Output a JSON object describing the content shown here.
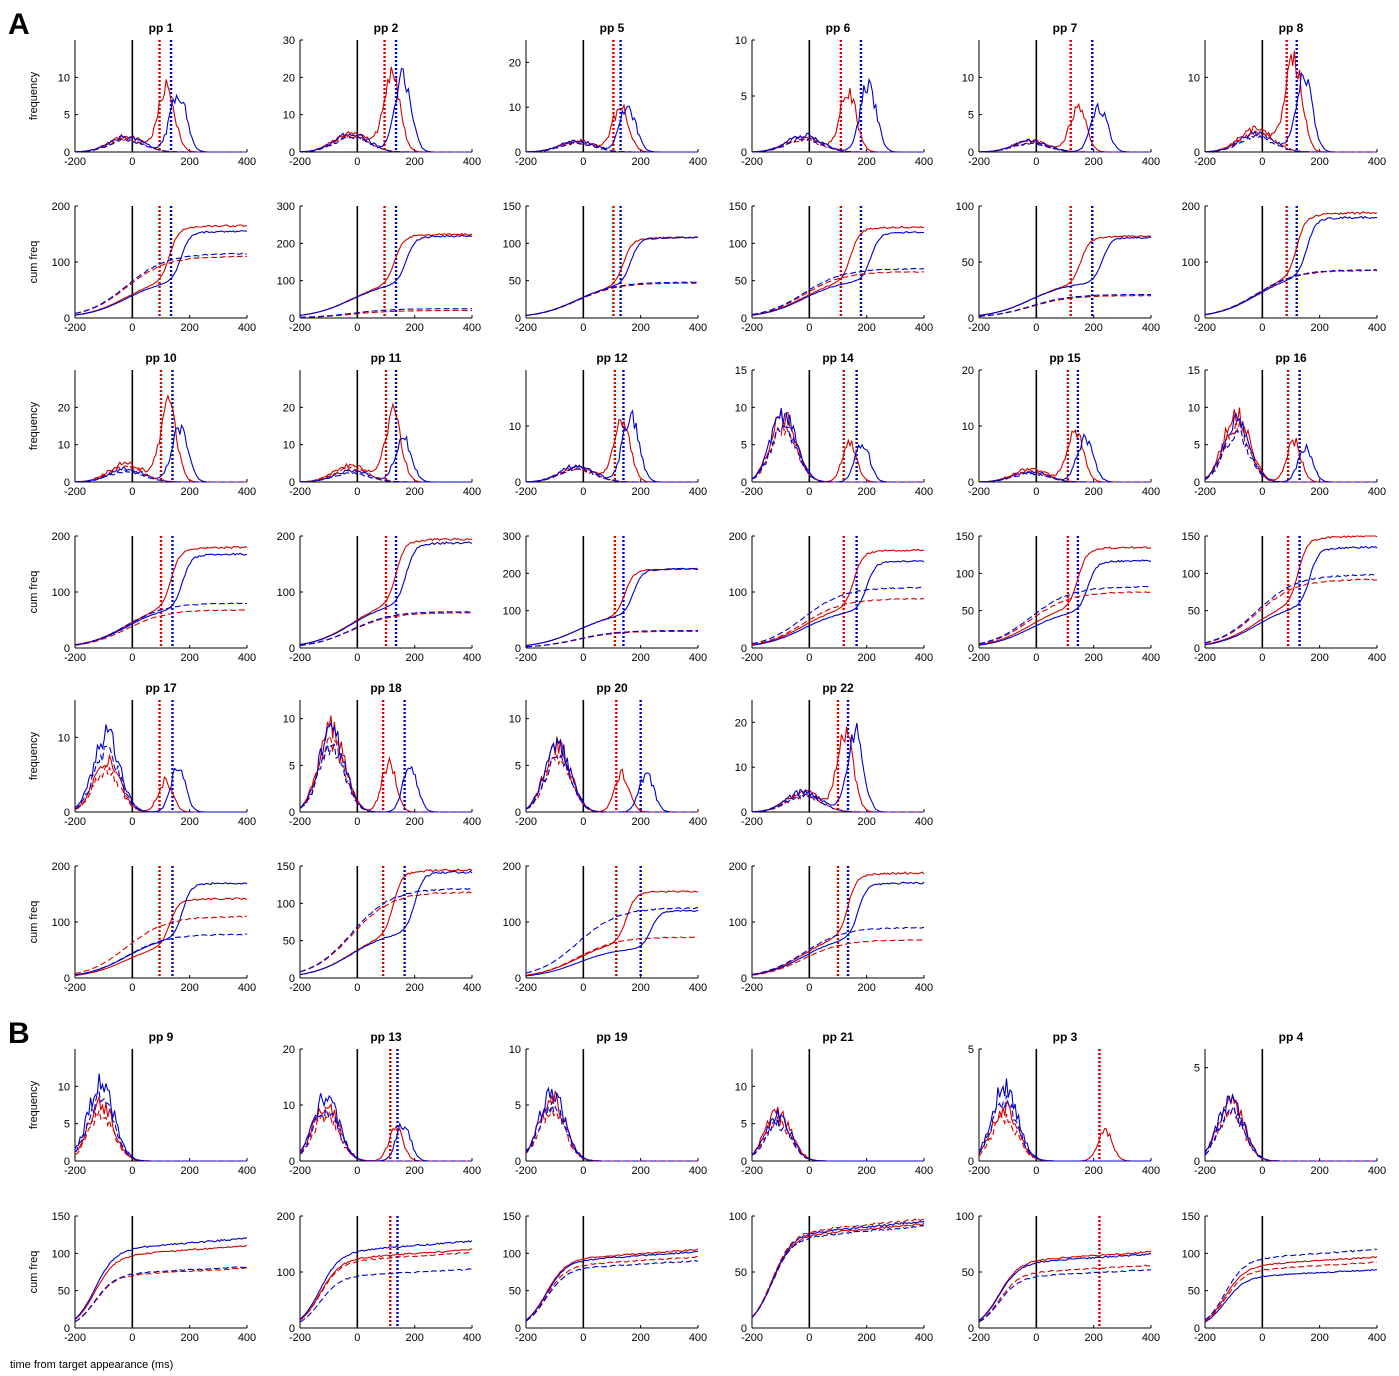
{
  "panel_labels": [
    "A",
    "B"
  ],
  "x_axis_label": "time from target appearance (ms)",
  "y_labels": {
    "frequency": "frequency",
    "cum": "cum freq"
  },
  "colors": {
    "red": "#d40000",
    "blue": "#0000cc",
    "zero_line": "#000000"
  },
  "chart_data": {
    "type": "line",
    "xlim": [
      -200,
      400
    ],
    "xticks": [
      -200,
      0,
      200,
      400
    ],
    "series_legend": "solid = main condition, dashed = comparison condition; red and blue are the two target conditions; dotted vertical lines mark red/blue latency estimates",
    "participants": [
      {
        "section": "A",
        "row": 0,
        "col": 0,
        "name": "pp 1",
        "freq_ylim": [
          0,
          15
        ],
        "freq_yticks": [
          0,
          5,
          10
        ],
        "cum_ylim": [
          0,
          200
        ],
        "cum_yticks": [
          0,
          100,
          200
        ],
        "red_marker": 95,
        "blue_marker": 135,
        "freq_peaks": {
          "red": 8.5,
          "blue": 8
        },
        "cum_final": {
          "red_solid": 165,
          "blue_solid": 155,
          "red_dashed": 110,
          "blue_dashed": 115
        }
      },
      {
        "section": "A",
        "row": 0,
        "col": 1,
        "name": "pp 2",
        "freq_ylim": [
          0,
          30
        ],
        "freq_yticks": [
          0,
          10,
          20,
          30
        ],
        "cum_ylim": [
          0,
          300
        ],
        "cum_yticks": [
          0,
          100,
          200,
          300
        ],
        "red_marker": 95,
        "blue_marker": 135,
        "freq_peaks": {
          "red": 21,
          "blue": 20
        },
        "cum_final": {
          "red_solid": 225,
          "blue_solid": 220,
          "red_dashed": 20,
          "blue_dashed": 25
        }
      },
      {
        "section": "A",
        "row": 0,
        "col": 2,
        "name": "pp 5",
        "freq_ylim": [
          0,
          25
        ],
        "freq_yticks": [
          0,
          10,
          20
        ],
        "cum_ylim": [
          0,
          150
        ],
        "cum_yticks": [
          0,
          50,
          100,
          150
        ],
        "red_marker": 105,
        "blue_marker": 130,
        "freq_peaks": {
          "red": 10,
          "blue": 10
        },
        "cum_final": {
          "red_solid": 108,
          "blue_solid": 108,
          "red_dashed": 47,
          "blue_dashed": 48
        }
      },
      {
        "section": "A",
        "row": 0,
        "col": 3,
        "name": "pp 6",
        "freq_ylim": [
          0,
          10
        ],
        "freq_yticks": [
          0,
          5,
          10
        ],
        "cum_ylim": [
          0,
          150
        ],
        "cum_yticks": [
          0,
          50,
          100,
          150
        ],
        "red_marker": 110,
        "blue_marker": 180,
        "freq_peaks": {
          "red": 5.5,
          "blue": 6
        },
        "cum_final": {
          "red_solid": 122,
          "blue_solid": 115,
          "red_dashed": 62,
          "blue_dashed": 66
        }
      },
      {
        "section": "A",
        "row": 0,
        "col": 4,
        "name": "pp 7",
        "freq_ylim": [
          0,
          15
        ],
        "freq_yticks": [
          0,
          5,
          10
        ],
        "cum_ylim": [
          0,
          100
        ],
        "cum_yticks": [
          0,
          50,
          100
        ],
        "red_marker": 120,
        "blue_marker": 195,
        "freq_peaks": {
          "red": 6,
          "blue": 6
        },
        "cum_final": {
          "red_solid": 73,
          "blue_solid": 72,
          "red_dashed": 20,
          "blue_dashed": 21
        }
      },
      {
        "section": "A",
        "row": 0,
        "col": 5,
        "name": "pp 8",
        "freq_ylim": [
          0,
          15
        ],
        "freq_yticks": [
          0,
          10
        ],
        "cum_ylim": [
          0,
          200
        ],
        "cum_yticks": [
          0,
          100,
          200
        ],
        "red_marker": 85,
        "blue_marker": 120,
        "freq_peaks": {
          "red": 12.5,
          "blue": 10
        },
        "cum_final": {
          "red_solid": 188,
          "blue_solid": 180,
          "red_dashed": 85,
          "blue_dashed": 86
        }
      },
      {
        "section": "A",
        "row": 1,
        "col": 0,
        "name": "pp 10",
        "freq_ylim": [
          0,
          30
        ],
        "freq_yticks": [
          0,
          10,
          20
        ],
        "cum_ylim": [
          0,
          200
        ],
        "cum_yticks": [
          0,
          100,
          200
        ],
        "red_marker": 100,
        "blue_marker": 140,
        "freq_peaks": {
          "red": 20,
          "blue": 14
        },
        "cum_final": {
          "red_solid": 180,
          "blue_solid": 168,
          "red_dashed": 68,
          "blue_dashed": 80
        }
      },
      {
        "section": "A",
        "row": 1,
        "col": 1,
        "name": "pp 11",
        "freq_ylim": [
          0,
          30
        ],
        "freq_yticks": [
          0,
          10,
          20
        ],
        "cum_ylim": [
          0,
          200
        ],
        "cum_yticks": [
          0,
          100,
          200
        ],
        "red_marker": 100,
        "blue_marker": 135,
        "freq_peaks": {
          "red": 18.5,
          "blue": 12
        },
        "cum_final": {
          "red_solid": 195,
          "blue_solid": 188,
          "red_dashed": 63,
          "blue_dashed": 65
        }
      },
      {
        "section": "A",
        "row": 1,
        "col": 2,
        "name": "pp 12",
        "freq_ylim": [
          0,
          20
        ],
        "freq_yticks": [
          0,
          10
        ],
        "cum_ylim": [
          0,
          300
        ],
        "cum_yticks": [
          0,
          100,
          200,
          300
        ],
        "red_marker": 110,
        "blue_marker": 140,
        "freq_peaks": {
          "red": 11,
          "blue": 12
        },
        "cum_final": {
          "red_solid": 212,
          "blue_solid": 212,
          "red_dashed": 45,
          "blue_dashed": 47
        }
      },
      {
        "section": "A",
        "row": 1,
        "col": 3,
        "name": "pp 14",
        "freq_ylim": [
          0,
          15
        ],
        "freq_yticks": [
          0,
          5,
          10,
          15
        ],
        "cum_ylim": [
          0,
          200
        ],
        "cum_yticks": [
          0,
          100,
          200
        ],
        "red_marker": 120,
        "blue_marker": 165,
        "freq_peaks": {
          "red": 9.5,
          "blue": 9.5
        },
        "cum_final": {
          "red_solid": 175,
          "blue_solid": 155,
          "red_dashed": 88,
          "blue_dashed": 108
        }
      },
      {
        "section": "A",
        "row": 1,
        "col": 4,
        "name": "pp 15",
        "freq_ylim": [
          0,
          20
        ],
        "freq_yticks": [
          0,
          10,
          20
        ],
        "cum_ylim": [
          0,
          150
        ],
        "cum_yticks": [
          0,
          50,
          100,
          150
        ],
        "red_marker": 110,
        "blue_marker": 145,
        "freq_peaks": {
          "red": 9.5,
          "blue": 7.5
        },
        "cum_final": {
          "red_solid": 135,
          "blue_solid": 117,
          "red_dashed": 75,
          "blue_dashed": 82
        }
      },
      {
        "section": "A",
        "row": 1,
        "col": 5,
        "name": "pp 16",
        "freq_ylim": [
          0,
          15
        ],
        "freq_yticks": [
          0,
          5,
          10,
          15
        ],
        "cum_ylim": [
          0,
          150
        ],
        "cum_yticks": [
          0,
          50,
          100,
          150
        ],
        "red_marker": 90,
        "blue_marker": 130,
        "freq_peaks": {
          "red": 10,
          "blue": 8.5
        },
        "cum_final": {
          "red_solid": 150,
          "blue_solid": 135,
          "red_dashed": 92,
          "blue_dashed": 98
        }
      },
      {
        "section": "A",
        "row": 2,
        "col": 0,
        "name": "pp 17",
        "freq_ylim": [
          0,
          15
        ],
        "freq_yticks": [
          0,
          10
        ],
        "cum_ylim": [
          0,
          200
        ],
        "cum_yticks": [
          0,
          100,
          200
        ],
        "red_marker": 95,
        "blue_marker": 140,
        "freq_peaks": {
          "red": 7.5,
          "blue": 11
        },
        "cum_final": {
          "red_solid": 142,
          "blue_solid": 170,
          "red_dashed": 110,
          "blue_dashed": 78
        }
      },
      {
        "section": "A",
        "row": 2,
        "col": 1,
        "name": "pp 18",
        "freq_ylim": [
          0,
          12
        ],
        "freq_yticks": [
          0,
          5,
          10
        ],
        "cum_ylim": [
          0,
          150
        ],
        "cum_yticks": [
          0,
          50,
          100,
          150
        ],
        "red_marker": 90,
        "blue_marker": 165,
        "freq_peaks": {
          "red": 9.5,
          "blue": 9
        },
        "cum_final": {
          "red_solid": 145,
          "blue_solid": 142,
          "red_dashed": 115,
          "blue_dashed": 120
        }
      },
      {
        "section": "A",
        "row": 2,
        "col": 2,
        "name": "pp 20",
        "freq_ylim": [
          0,
          12
        ],
        "freq_yticks": [
          0,
          5,
          10
        ],
        "cum_ylim": [
          0,
          200
        ],
        "cum_yticks": [
          0,
          100,
          200
        ],
        "red_marker": 115,
        "blue_marker": 200,
        "freq_peaks": {
          "red": 7.5,
          "blue": 7.5
        },
        "cum_final": {
          "red_solid": 155,
          "blue_solid": 120,
          "red_dashed": 73,
          "blue_dashed": 125
        }
      },
      {
        "section": "A",
        "row": 2,
        "col": 3,
        "name": "pp 22",
        "freq_ylim": [
          0,
          25
        ],
        "freq_yticks": [
          0,
          10,
          20
        ],
        "cum_ylim": [
          0,
          200
        ],
        "cum_yticks": [
          0,
          100,
          200
        ],
        "red_marker": 100,
        "blue_marker": 135,
        "freq_peaks": {
          "red": 18,
          "blue": 18
        },
        "cum_final": {
          "red_solid": 188,
          "blue_solid": 170,
          "red_dashed": 68,
          "blue_dashed": 90
        }
      },
      {
        "section": "B",
        "row": 0,
        "col": 0,
        "name": "pp 9",
        "freq_ylim": [
          0,
          15
        ],
        "freq_yticks": [
          0,
          5,
          10
        ],
        "cum_ylim": [
          0,
          150
        ],
        "cum_yticks": [
          0,
          50,
          100,
          150
        ],
        "red_marker": null,
        "blue_marker": null,
        "freq_peaks": {
          "red": 8,
          "blue": 11
        },
        "cum_final": {
          "red_solid": 110,
          "blue_solid": 120,
          "red_dashed": 80,
          "blue_dashed": 82
        }
      },
      {
        "section": "B",
        "row": 0,
        "col": 1,
        "name": "pp 13",
        "freq_ylim": [
          0,
          20
        ],
        "freq_yticks": [
          0,
          10,
          20
        ],
        "cum_ylim": [
          0,
          200
        ],
        "cum_yticks": [
          0,
          100,
          200
        ],
        "red_marker": 115,
        "blue_marker": 140,
        "freq_peaks": {
          "red": 10.5,
          "blue": 12
        },
        "cum_final": {
          "red_solid": 140,
          "blue_solid": 155,
          "red_dashed": 135,
          "blue_dashed": 105
        }
      },
      {
        "section": "B",
        "row": 0,
        "col": 2,
        "name": "pp 19",
        "freq_ylim": [
          0,
          10
        ],
        "freq_yticks": [
          0,
          5,
          10
        ],
        "cum_ylim": [
          0,
          150
        ],
        "cum_yticks": [
          0,
          50,
          100,
          150
        ],
        "red_marker": null,
        "blue_marker": null,
        "freq_peaks": {
          "red": 6,
          "blue": 6.5
        },
        "cum_final": {
          "red_solid": 105,
          "blue_solid": 102,
          "red_dashed": 95,
          "blue_dashed": 90
        }
      },
      {
        "section": "B",
        "row": 0,
        "col": 3,
        "name": "pp 21",
        "freq_ylim": [
          0,
          15
        ],
        "freq_yticks": [
          0,
          5,
          10
        ],
        "cum_ylim": [
          0,
          100
        ],
        "cum_yticks": [
          0,
          50,
          100
        ],
        "red_marker": null,
        "blue_marker": null,
        "freq_peaks": {
          "red": 7,
          "blue": 6.5
        },
        "cum_final": {
          "red_solid": 93,
          "blue_solid": 95,
          "red_dashed": 97,
          "blue_dashed": 91
        }
      },
      {
        "section": "B",
        "row": 0,
        "col": 4,
        "name": "pp 3",
        "freq_ylim": [
          0,
          5
        ],
        "freq_yticks": [
          0,
          5
        ],
        "cum_ylim": [
          0,
          100
        ],
        "cum_yticks": [
          0,
          50,
          100
        ],
        "red_marker": 220,
        "blue_marker": null,
        "freq_peaks": {
          "red": 2.5,
          "blue": 3.5
        },
        "cum_final": {
          "red_solid": 68,
          "blue_solid": 66,
          "red_dashed": 56,
          "blue_dashed": 52
        }
      },
      {
        "section": "B",
        "row": 0,
        "col": 5,
        "name": "pp 4",
        "freq_ylim": [
          0,
          6
        ],
        "freq_yticks": [
          0,
          5
        ],
        "cum_ylim": [
          0,
          150
        ],
        "cum_yticks": [
          0,
          50,
          100,
          150
        ],
        "red_marker": null,
        "blue_marker": null,
        "freq_peaks": {
          "red": 3.5,
          "blue": 3.5
        },
        "cum_final": {
          "red_solid": 95,
          "blue_solid": 78,
          "red_dashed": 88,
          "blue_dashed": 105
        }
      }
    ]
  }
}
